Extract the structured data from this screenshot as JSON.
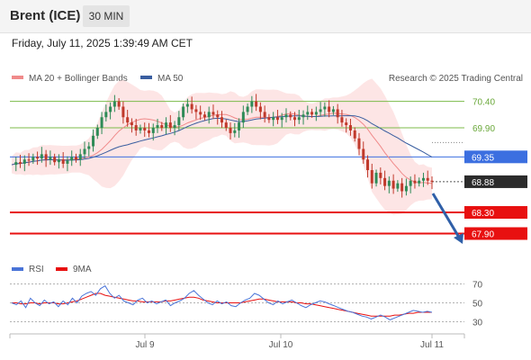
{
  "header": {
    "instrument": "Brent (ICE)",
    "timeframe": "30 MIN",
    "datetime": "Friday, July 11, 2025 1:39:49 AM CET"
  },
  "legend": {
    "ma20_label": "MA 20 + Bollinger Bands",
    "ma50_label": "MA 50",
    "credit": "Research © 2025 Trading Central"
  },
  "rsi_legend": {
    "rsi_label": "RSI",
    "ma_label": "9MA"
  },
  "colors": {
    "ma20": "#f08a8a",
    "ma50": "#3a5ea0",
    "band": "#fde1e1",
    "up": "#2e8b57",
    "down": "#c0392b",
    "support": "#e81010",
    "pivot": "#3c6fe0",
    "resistance": "#7cbb4a",
    "last": "#2b2b2b",
    "arrow": "#2f5fa8"
  },
  "chart_data": {
    "type": "candlestick",
    "x_ticks": [
      "Jul 9",
      "Jul 10",
      "Jul 11"
    ],
    "y_range": [
      67.5,
      70.7
    ],
    "levels": [
      {
        "value": 70.4,
        "label": "70.40",
        "kind": "resistance"
      },
      {
        "value": 69.9,
        "label": "69.90",
        "kind": "resistance"
      },
      {
        "value": 69.35,
        "label": "69.35",
        "kind": "pivot"
      },
      {
        "value": 68.88,
        "label": "68.88",
        "kind": "last"
      },
      {
        "value": 68.3,
        "label": "68.30",
        "kind": "support"
      },
      {
        "value": 67.9,
        "label": "67.90",
        "kind": "support"
      }
    ],
    "close_series": [
      69.2,
      69.25,
      69.22,
      69.3,
      69.28,
      69.35,
      69.32,
      69.4,
      69.3,
      69.35,
      69.25,
      69.3,
      69.22,
      69.28,
      69.35,
      69.3,
      69.4,
      69.5,
      69.55,
      69.75,
      69.9,
      70.1,
      70.2,
      70.3,
      70.4,
      70.3,
      70.1,
      70.0,
      69.95,
      69.85,
      69.9,
      69.85,
      69.8,
      69.9,
      69.95,
      69.9,
      70.0,
      69.9,
      69.95,
      70.1,
      70.3,
      70.35,
      70.25,
      70.2,
      70.15,
      70.1,
      70.2,
      70.15,
      70.1,
      70.0,
      69.9,
      69.8,
      69.85,
      70.0,
      70.2,
      70.3,
      70.4,
      70.3,
      70.2,
      70.1,
      70.05,
      70.1,
      70.05,
      70.1,
      70.15,
      70.1,
      70.05,
      70.1,
      70.15,
      70.2,
      70.15,
      70.2,
      70.25,
      70.3,
      70.2,
      70.25,
      70.1,
      70.0,
      69.95,
      69.85,
      69.7,
      69.5,
      69.3,
      69.1,
      68.85,
      69.05,
      68.95,
      68.8,
      68.9,
      68.75,
      68.85,
      68.7,
      68.8,
      68.9,
      68.85,
      68.9,
      68.95,
      68.9,
      68.88
    ],
    "rsi": {
      "levels": [
        70,
        50,
        30
      ],
      "rsi_series": [
        50,
        48,
        52,
        45,
        55,
        50,
        47,
        53,
        49,
        51,
        46,
        52,
        48,
        55,
        50,
        57,
        60,
        62,
        58,
        65,
        68,
        60,
        55,
        58,
        52,
        50,
        48,
        53,
        55,
        50,
        52,
        49,
        51,
        53,
        47,
        50,
        52,
        55,
        60,
        63,
        58,
        54,
        50,
        48,
        52,
        49,
        51,
        47,
        46,
        50,
        53,
        55,
        60,
        58,
        54,
        50,
        48,
        52,
        49,
        51,
        53,
        50,
        47,
        45,
        48,
        50,
        52,
        51,
        49,
        47,
        45,
        43,
        41,
        40,
        38,
        36,
        35,
        33,
        35,
        37,
        35,
        32,
        34,
        36,
        38,
        40,
        42,
        41,
        40,
        41,
        40
      ],
      "ma_series": [
        50,
        50,
        49,
        49,
        50,
        50,
        49,
        50,
        50,
        50,
        49,
        49,
        50,
        51,
        52,
        54,
        56,
        58,
        60,
        60,
        58,
        57,
        56,
        55,
        54,
        53,
        52,
        52,
        51,
        51,
        51,
        51,
        51,
        52,
        52,
        53,
        54,
        55,
        56,
        56,
        55,
        53,
        52,
        51,
        50,
        50,
        50,
        50,
        50,
        50,
        51,
        52,
        53,
        54,
        54,
        53,
        52,
        51,
        51,
        51,
        51,
        50,
        50,
        49,
        49,
        48,
        47,
        46,
        45,
        44,
        43,
        42,
        41,
        40,
        39,
        38,
        37,
        36,
        36,
        36,
        36,
        36,
        37,
        37,
        38,
        39,
        39,
        40,
        40,
        40,
        40
      ]
    }
  }
}
